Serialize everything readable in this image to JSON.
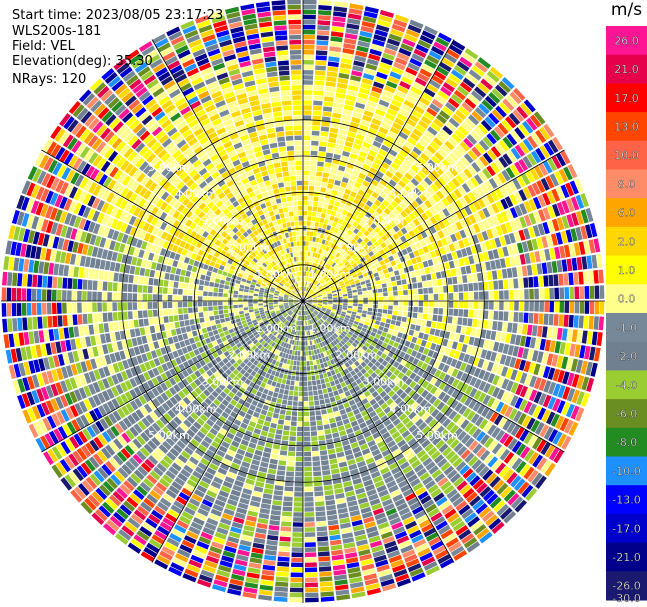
{
  "info": {
    "start_time": "Start time: 2023/08/05 23:17:23",
    "instrument": "WLS200s-181",
    "field": "Field: VEL",
    "elevation": "Elevation(deg): 35.30",
    "nrays": "NRays: 120"
  },
  "colorbar": {
    "unit": "m/s",
    "levels": [
      "26.0",
      "21.0",
      "17.0",
      "13.0",
      "10.0",
      "8.0",
      "6.0",
      "2.0",
      "1.0",
      "0.0",
      "-1.0",
      "-2.0",
      "-4.0",
      "-6.0",
      "-8.0",
      "-10.0",
      "-13.0",
      "-17.0",
      "-21.0",
      "-26.0",
      "-30.0"
    ],
    "colors": [
      "#ff1493",
      "#e6004c",
      "#ff0000",
      "#ff4500",
      "#ff6347",
      "#ff8c69",
      "#ffa500",
      "#ffd700",
      "#ffff00",
      "#ffff8c",
      "#778899",
      "#708090",
      "#9acd32",
      "#6b8e23",
      "#228b22",
      "#1e90ff",
      "#0000ff",
      "#0000cd",
      "#00008b",
      "#191970"
    ]
  },
  "chart_data": {
    "type": "heatmap",
    "projection": "polar-ppi",
    "field": "VEL",
    "nrays": 120,
    "range_rings_km": [
      1.0,
      2.0,
      3.0,
      4.0,
      5.0
    ],
    "ring_labels": [
      "1.00km",
      "2.00km",
      "3.00km",
      "4.00km",
      "5.00km"
    ],
    "max_range_km": 5.0,
    "sector_velocity_tendency": [
      {
        "sector": "north",
        "tendency": "positive (1 to 6 m/s)"
      },
      {
        "sector": "northeast",
        "tendency": "positive (1 to 6 m/s)"
      },
      {
        "sector": "east",
        "tendency": "mixed near zero"
      },
      {
        "sector": "south",
        "tendency": "negative (-1 to -4 m/s)"
      },
      {
        "sector": "southwest",
        "tendency": "negative (-1 to -4 m/s)"
      },
      {
        "sector": "west",
        "tendency": "mixed near zero"
      }
    ]
  }
}
